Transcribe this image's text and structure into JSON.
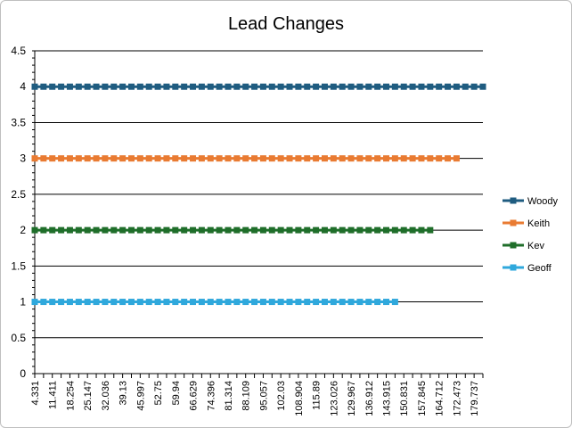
{
  "chart_data": {
    "type": "line",
    "title": "Lead Changes",
    "xlabel": "",
    "ylabel": "",
    "ylim": [
      0,
      4.5
    ],
    "yticks": [
      "0",
      "0.5",
      "1",
      "1.5",
      "2",
      "2.5",
      "3",
      "3.5",
      "4",
      "4.5"
    ],
    "x_tick_labels": [
      "4.331",
      "11.411",
      "18.254",
      "25.147",
      "32.036",
      "39.13",
      "45.997",
      "52.75",
      "59.94",
      "66.629",
      "74.396",
      "81.314",
      "88.109",
      "95.057",
      "102.03",
      "108.904",
      "115.89",
      "123.026",
      "129.967",
      "136.912",
      "143.915",
      "150.831",
      "157.845",
      "164.712",
      "172.473",
      "179.737"
    ],
    "category_count": 52,
    "grid": "horizontal",
    "legend_position": "right",
    "series": [
      {
        "name": "Woody",
        "y": 4,
        "points": 52,
        "color": "#1f5c80"
      },
      {
        "name": "Keith",
        "y": 3,
        "points": 49,
        "color": "#e97b32"
      },
      {
        "name": "Kev",
        "y": 2,
        "points": 46,
        "color": "#1f6e2a"
      },
      {
        "name": "Geoff",
        "y": 1,
        "points": 42,
        "color": "#2fa8dc"
      }
    ]
  }
}
